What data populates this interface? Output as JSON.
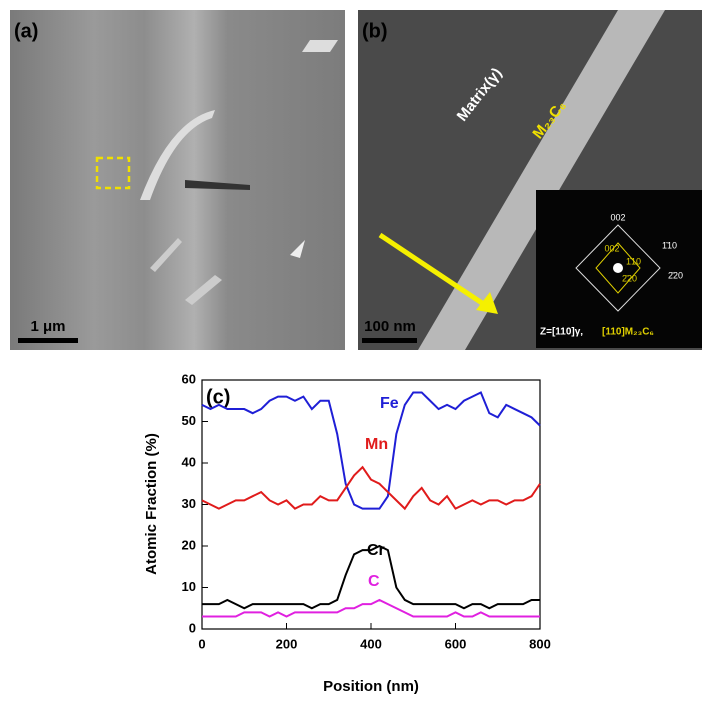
{
  "panels": {
    "a": {
      "label": "(a)",
      "scale_bar": "1 μm"
    },
    "b": {
      "label": "(b)",
      "scale_bar": "100 nm",
      "matrix": "Matrix(γ)",
      "precipitate": "M₂₃C₆",
      "spots_white": [
        "002",
        "1̄10",
        "2̄20"
      ],
      "spots_yellow": [
        "002",
        "1̄10",
        "2̄20"
      ],
      "zone_axis": "Z=[110]γ,",
      "zone_axis_precipitate": "[110]M₂₃C₆"
    }
  },
  "chart_data": {
    "type": "line",
    "panel_label": "(c)",
    "xlabel": "Position (nm)",
    "ylabel": "Atomic Fraction (%)",
    "x": [
      0,
      20,
      40,
      60,
      80,
      100,
      120,
      140,
      160,
      180,
      200,
      220,
      240,
      260,
      280,
      300,
      320,
      340,
      360,
      380,
      400,
      420,
      440,
      460,
      480,
      500,
      520,
      540,
      560,
      580,
      600,
      620,
      640,
      660,
      680,
      700,
      720,
      740,
      760,
      780,
      800
    ],
    "series": [
      {
        "name": "Fe",
        "color": "#1f1fd6",
        "values": [
          54,
          53,
          54,
          53,
          53,
          53,
          52,
          53,
          55,
          56,
          56,
          55,
          56,
          53,
          55,
          55,
          47,
          35,
          30,
          29,
          29,
          29,
          32,
          47,
          54,
          57,
          57,
          55,
          53,
          54,
          53,
          55,
          56,
          57,
          52,
          51,
          54,
          53,
          52,
          51,
          49
        ]
      },
      {
        "name": "Mn",
        "color": "#e01b1b",
        "values": [
          31,
          30,
          29,
          30,
          31,
          31,
          32,
          33,
          31,
          30,
          31,
          29,
          30,
          30,
          32,
          31,
          31,
          34,
          37,
          39,
          36,
          35,
          33,
          31,
          29,
          32,
          34,
          31,
          30,
          32,
          29,
          30,
          31,
          30,
          31,
          31,
          30,
          31,
          31,
          32,
          35
        ]
      },
      {
        "name": "Cr",
        "color": "#000000",
        "values": [
          6,
          6,
          6,
          7,
          6,
          5,
          6,
          6,
          6,
          6,
          6,
          6,
          6,
          5,
          6,
          6,
          7,
          13,
          18,
          19,
          19,
          20,
          19,
          10,
          7,
          6,
          6,
          6,
          6,
          6,
          6,
          5,
          6,
          6,
          5,
          6,
          6,
          6,
          6,
          7,
          7
        ]
      },
      {
        "name": "C",
        "color": "#e020e0",
        "values": [
          3,
          3,
          3,
          3,
          3,
          4,
          4,
          4,
          3,
          4,
          3,
          4,
          4,
          4,
          4,
          4,
          4,
          5,
          5,
          6,
          6,
          7,
          6,
          5,
          4,
          3,
          3,
          3,
          3,
          3,
          4,
          3,
          3,
          4,
          3,
          3,
          3,
          3,
          3,
          3,
          3
        ]
      }
    ],
    "xlim": [
      0,
      800
    ],
    "xticks": [
      0,
      200,
      400,
      600,
      800
    ],
    "ylim": [
      0,
      60
    ],
    "yticks": [
      0,
      10,
      20,
      30,
      40,
      50,
      60
    ],
    "grid": false
  }
}
